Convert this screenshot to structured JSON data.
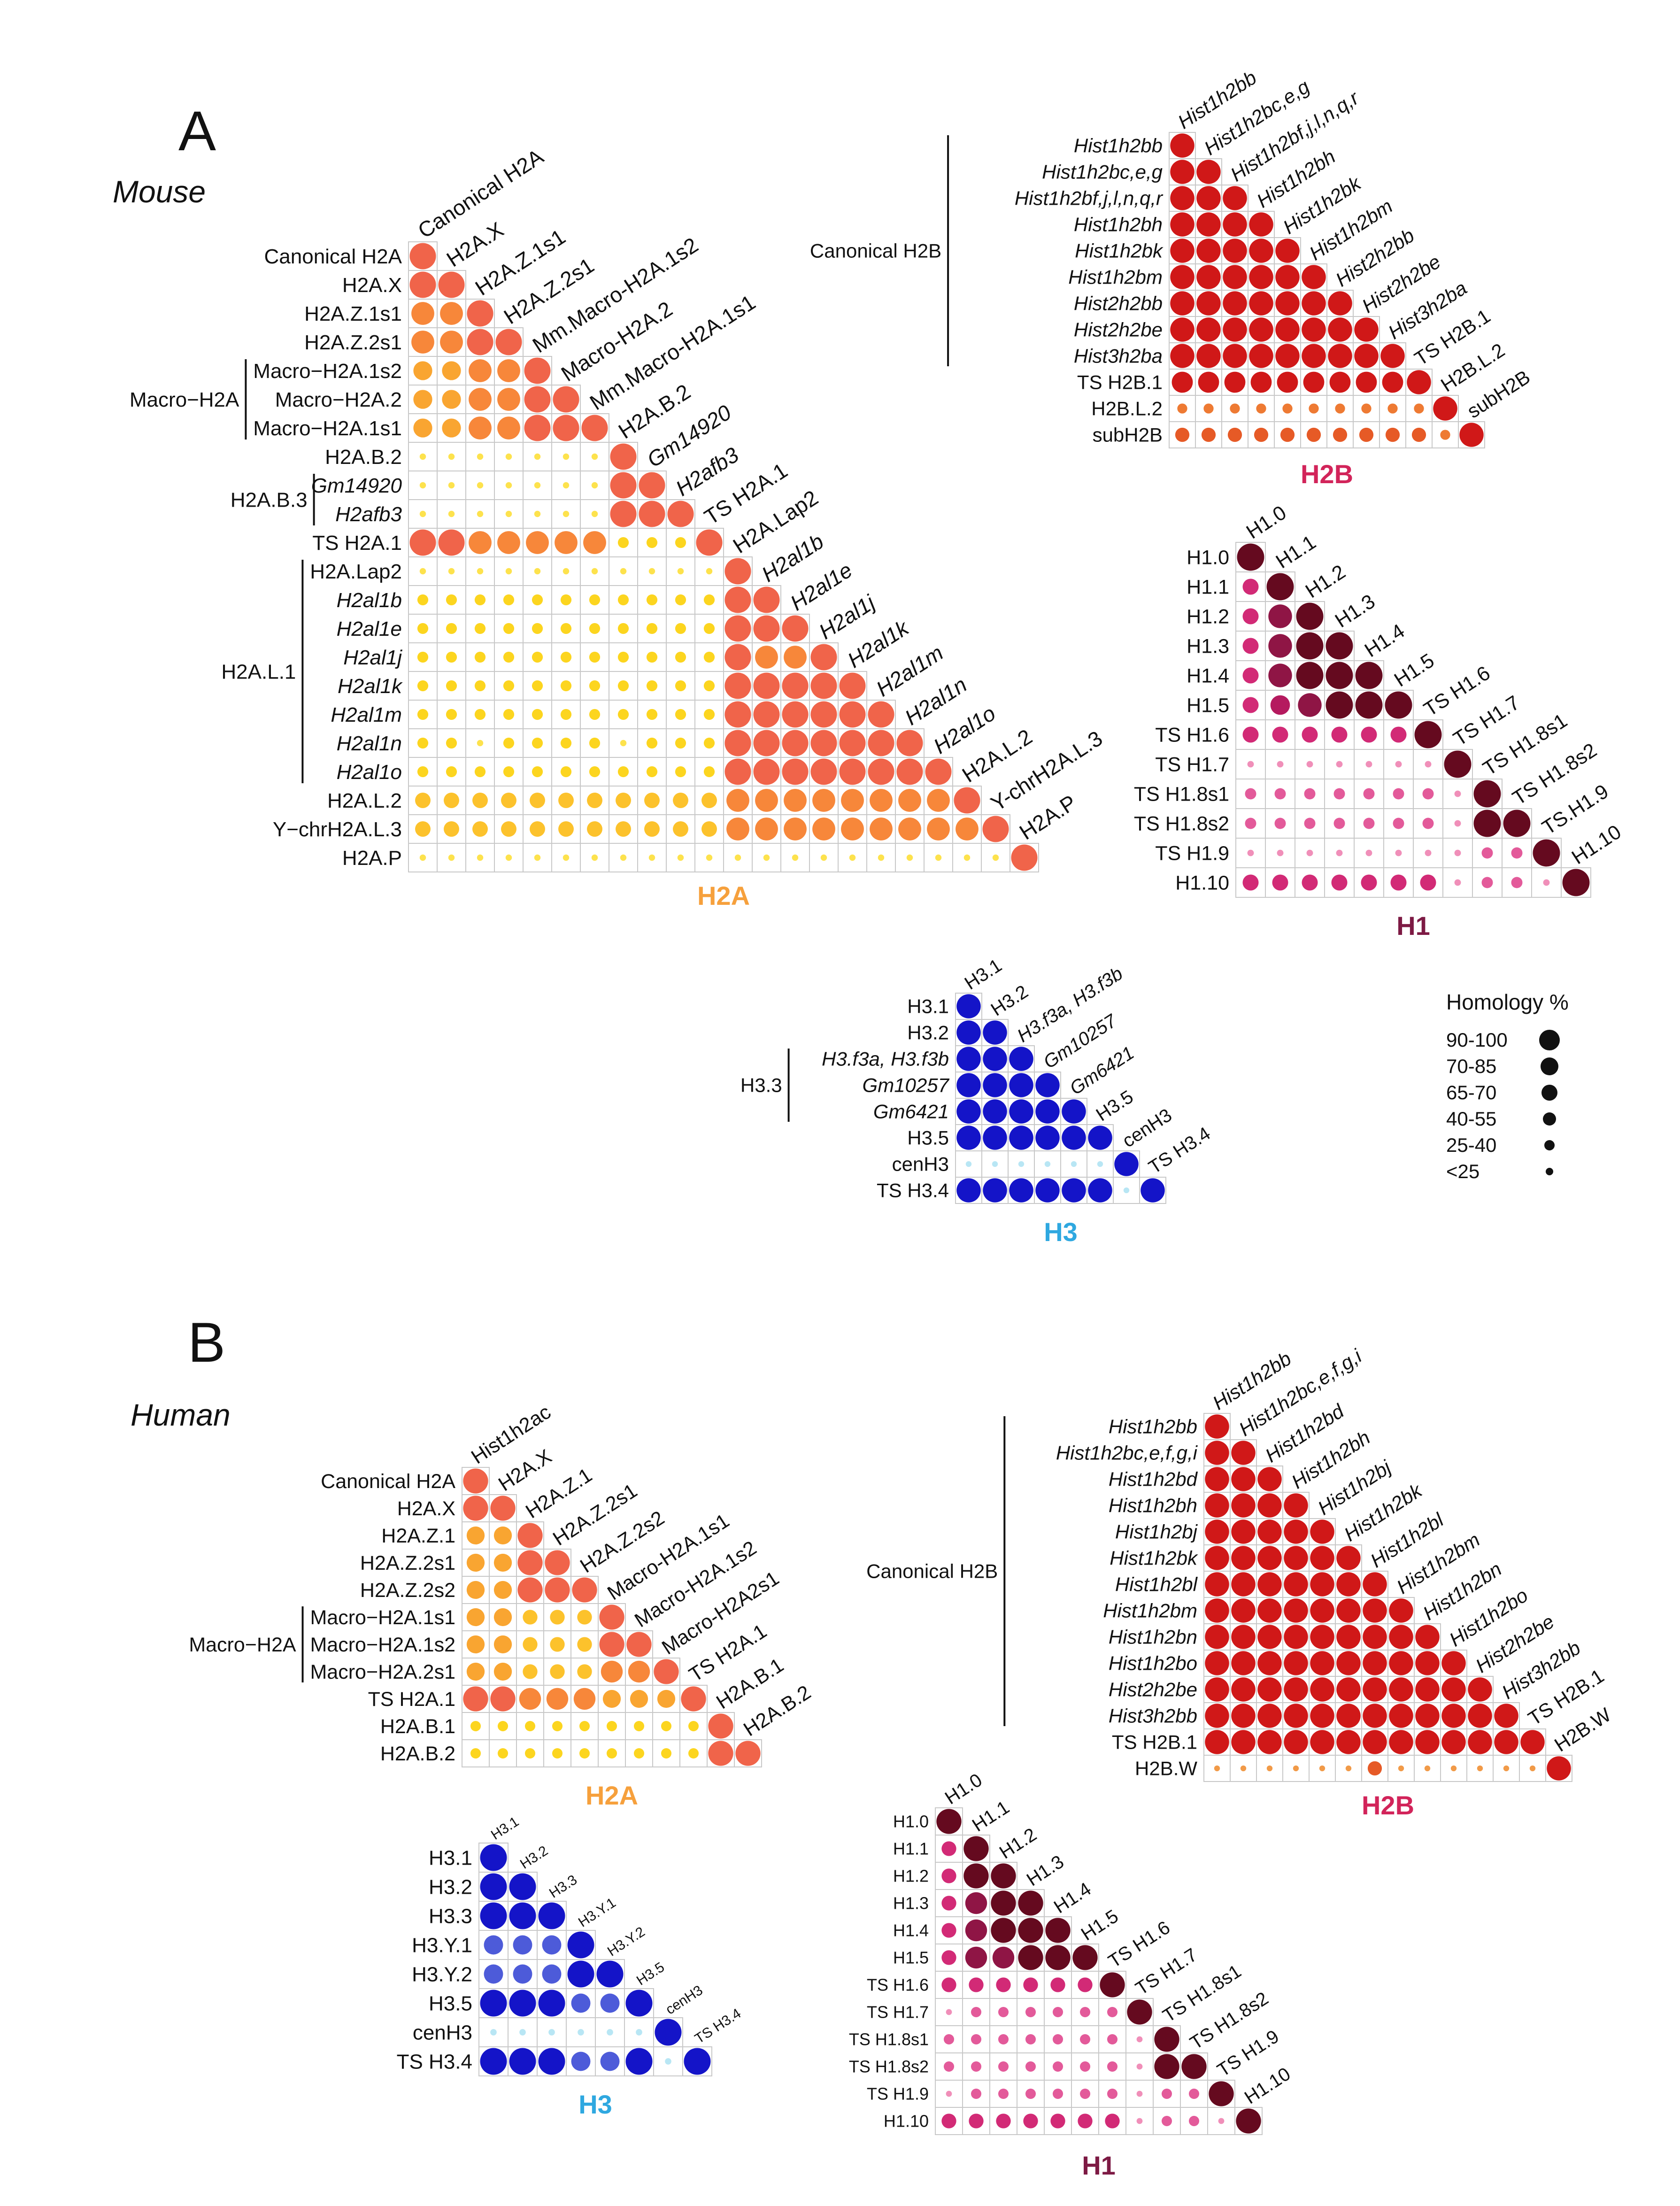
{
  "figure": {
    "panels": [
      {
        "letter": "A",
        "species": "Mouse"
      },
      {
        "letter": "B",
        "species": "Human"
      }
    ],
    "legend": {
      "title": "Homology %",
      "items": [
        "90-100",
        "70-85",
        "65-70",
        "40-55",
        "25-40",
        "<25"
      ]
    }
  },
  "colors": {
    "H2A": {
      "title": "#F6A03C",
      "bins": [
        "#F0644A",
        "#F7873A",
        "#F9A531",
        "#FCC22C",
        "#FCD51F",
        "#FDE24D"
      ]
    },
    "H2B": {
      "title": "#D2245A",
      "bins": [
        "#D01818",
        "#D01818",
        "#E1371A",
        "#E65A26",
        "#EE7A33",
        "#F19A48"
      ]
    },
    "H1": {
      "title": "#7D1A44",
      "bins": [
        "#650A1F",
        "#8F1545",
        "#B51A5F",
        "#D22A76",
        "#E35A9A",
        "#F08FB9"
      ]
    },
    "H3": {
      "title": "#2FA8E0",
      "bins": [
        "#1414C8",
        "#2B2BD0",
        "#4D5BD9",
        "#6B7BE0",
        "#9ABBEF",
        "#B8E6F4"
      ]
    }
  },
  "chart_data": [
    {
      "type": "heatmap",
      "id": "mouse-h2a",
      "title": "H2A",
      "panel": "A",
      "labels": [
        "Canonical H2A",
        "H2A.X",
        "H2A.Z.1s1",
        "H2A.Z.2s1",
        "Macro−H2A.1s2",
        "Macro−H2A.2",
        "Macro−H2A.1s1",
        "H2A.B.2",
        "Gm14920",
        "H2afb3",
        "TS H2A.1",
        "H2A.Lap2",
        "H2al1b",
        "H2al1e",
        "H2al1j",
        "H2al1k",
        "H2al1m",
        "H2al1n",
        "H2al1o",
        "H2A.L.2",
        "Y−chrH2A.L.3",
        "H2A.P"
      ],
      "top_labels": [
        "Canonical H2A",
        "H2A.X",
        "H2A.Z.1s1",
        "H2A.Z.2s1",
        "Mm.Macro-H2A.1s2",
        "Macro-H2A.2",
        "Mm.Macro-H2A.1s1",
        "H2A.B.2",
        "Gm14920",
        "H2afb3",
        "TS H2A.1",
        "H2A.Lap2",
        "H2al1b",
        "H2al1e",
        "H2al1j",
        "H2al1k",
        "H2al1m",
        "H2al1n",
        "H2al1o",
        "H2A.L.2",
        "Y-chrH2A.L.3",
        "H2A.P"
      ],
      "italic": [
        "Gm14920",
        "H2afb3",
        "H2al1b",
        "H2al1e",
        "H2al1j",
        "H2al1k",
        "H2al1m",
        "H2al1n",
        "H2al1o"
      ],
      "groups": [
        {
          "label": "Macro−H2A",
          "from": 4,
          "to": 6
        },
        {
          "label": "H2A.B.3",
          "from": 8,
          "to": 9
        },
        {
          "label": "H2A.L.1",
          "from": 11,
          "to": 18
        }
      ],
      "bins_legend": [
        "90-100",
        "70-85",
        "65-70",
        "40-55",
        "25-40",
        "<25"
      ],
      "bins": [
        [
          0
        ],
        [
          0,
          0
        ],
        [
          1,
          1,
          0
        ],
        [
          1,
          1,
          0,
          0
        ],
        [
          2,
          2,
          1,
          1,
          0
        ],
        [
          2,
          2,
          1,
          1,
          0,
          0
        ],
        [
          2,
          2,
          1,
          1,
          0,
          0,
          0
        ],
        [
          5,
          5,
          5,
          5,
          5,
          5,
          5,
          0
        ],
        [
          5,
          5,
          5,
          5,
          5,
          5,
          5,
          0,
          0
        ],
        [
          5,
          5,
          5,
          5,
          5,
          5,
          5,
          0,
          0,
          0
        ],
        [
          0,
          0,
          1,
          1,
          1,
          1,
          1,
          4,
          4,
          4,
          0
        ],
        [
          5,
          5,
          5,
          5,
          5,
          5,
          5,
          5,
          5,
          5,
          5,
          0
        ],
        [
          4,
          4,
          4,
          4,
          4,
          4,
          4,
          4,
          4,
          4,
          4,
          0,
          0
        ],
        [
          4,
          4,
          4,
          4,
          4,
          4,
          4,
          4,
          4,
          4,
          4,
          0,
          0,
          0
        ],
        [
          4,
          4,
          4,
          4,
          4,
          4,
          4,
          4,
          4,
          4,
          4,
          0,
          1,
          1,
          0
        ],
        [
          4,
          4,
          4,
          4,
          4,
          4,
          4,
          4,
          4,
          4,
          4,
          0,
          0,
          0,
          0,
          0
        ],
        [
          4,
          4,
          4,
          4,
          4,
          4,
          4,
          4,
          4,
          4,
          4,
          0,
          0,
          0,
          0,
          0,
          0
        ],
        [
          4,
          4,
          5,
          4,
          4,
          4,
          4,
          5,
          4,
          4,
          4,
          0,
          0,
          0,
          0,
          0,
          0,
          0
        ],
        [
          4,
          4,
          4,
          4,
          4,
          4,
          4,
          4,
          4,
          4,
          4,
          0,
          0,
          0,
          0,
          0,
          0,
          0,
          0
        ],
        [
          3,
          3,
          3,
          3,
          3,
          3,
          3,
          3,
          3,
          3,
          3,
          1,
          1,
          1,
          1,
          1,
          1,
          1,
          1,
          0
        ],
        [
          3,
          3,
          3,
          3,
          3,
          3,
          3,
          3,
          3,
          3,
          3,
          1,
          1,
          1,
          1,
          1,
          1,
          1,
          1,
          1,
          0
        ],
        [
          5,
          5,
          5,
          5,
          5,
          5,
          5,
          5,
          5,
          5,
          5,
          5,
          5,
          5,
          5,
          5,
          5,
          5,
          5,
          5,
          5,
          0
        ]
      ]
    },
    {
      "type": "heatmap",
      "id": "mouse-h2b",
      "title": "H2B",
      "panel": "A",
      "labels": [
        "Hist1h2bb",
        "Hist1h2bc,e,g",
        "Hist1h2bf,j,l,n,q,r",
        "Hist1h2bh",
        "Hist1h2bk",
        "Hist1h2bm",
        "Hist2h2bb",
        "Hist2h2be",
        "Hist3h2ba",
        "TS H2B.1",
        "H2B.L.2",
        "subH2B"
      ],
      "top_labels": [
        "Hist1h2bb",
        "Hist1h2bc,e,g",
        "Hist1h2bf,j,l,n,q,r",
        "Hist1h2bh",
        "Hist1h2bk",
        "Hist1h2bm",
        "Hist2h2bb",
        "Hist2h2be",
        "Hist3h2ba",
        "TS H2B.1",
        "H2B.L.2",
        "subH2B"
      ],
      "italic": [
        "Hist1h2bb",
        "Hist1h2bc,e,g",
        "Hist1h2bf,j,l,n,q,r",
        "Hist1h2bh",
        "Hist1h2bk",
        "Hist1h2bm",
        "Hist2h2bb",
        "Hist2h2be",
        "Hist3h2ba"
      ],
      "groups": [
        {
          "label": "Canonical H2B",
          "from": 0,
          "to": 8
        }
      ],
      "bins": [
        [
          0
        ],
        [
          0,
          0
        ],
        [
          0,
          0,
          0
        ],
        [
          0,
          0,
          0,
          0
        ],
        [
          0,
          0,
          0,
          0,
          0
        ],
        [
          0,
          0,
          0,
          0,
          0,
          0
        ],
        [
          0,
          0,
          0,
          0,
          0,
          0,
          0
        ],
        [
          0,
          0,
          0,
          0,
          0,
          0,
          0,
          0
        ],
        [
          0,
          0,
          0,
          0,
          0,
          0,
          0,
          0,
          0
        ],
        [
          1,
          1,
          1,
          1,
          1,
          1,
          1,
          1,
          1,
          0
        ],
        [
          4,
          4,
          4,
          4,
          4,
          4,
          4,
          4,
          4,
          4,
          0
        ],
        [
          3,
          3,
          3,
          3,
          3,
          3,
          3,
          3,
          3,
          3,
          4,
          0
        ]
      ]
    },
    {
      "type": "heatmap",
      "id": "mouse-h1",
      "title": "H1",
      "panel": "A",
      "labels": [
        "H1.0",
        "H1.1",
        "H1.2",
        "H1.3",
        "H1.4",
        "H1.5",
        "TS H1.6",
        "TS H1.7",
        "TS H1.8s1",
        "TS H1.8s2",
        "TS H1.9",
        "H1.10"
      ],
      "top_labels": [
        "H1.0",
        "H1.1",
        "H1.2",
        "H1.3",
        "H1.4",
        "H1.5",
        "TS H1.6",
        "TS H1.7",
        "TS H1.8s1",
        "TS H1.8s2",
        "TS.H1.9",
        "H1.10"
      ],
      "italic": [],
      "groups": [],
      "bins": [
        [
          0
        ],
        [
          3,
          0
        ],
        [
          3,
          1,
          0
        ],
        [
          3,
          1,
          0,
          0
        ],
        [
          3,
          1,
          0,
          0,
          0
        ],
        [
          3,
          2,
          1,
          0,
          0,
          0
        ],
        [
          3,
          3,
          3,
          3,
          3,
          3,
          0
        ],
        [
          5,
          5,
          5,
          5,
          5,
          5,
          5,
          0
        ],
        [
          4,
          4,
          4,
          4,
          4,
          4,
          4,
          5,
          0
        ],
        [
          4,
          4,
          4,
          4,
          4,
          4,
          4,
          5,
          0,
          0
        ],
        [
          5,
          5,
          5,
          5,
          5,
          5,
          5,
          5,
          4,
          4,
          0
        ],
        [
          3,
          3,
          3,
          3,
          3,
          3,
          3,
          5,
          4,
          4,
          5,
          0
        ]
      ]
    },
    {
      "type": "heatmap",
      "id": "mouse-h3",
      "title": "H3",
      "panel": "A",
      "labels": [
        "H3.1",
        "H3.2",
        "H3.f3a, H3.f3b",
        "Gm10257",
        "Gm6421",
        "H3.5",
        "cenH3",
        "TS H3.4"
      ],
      "top_labels": [
        "H3.1",
        "H3.2",
        "H3.f3a, H3.f3b",
        "Gm10257",
        "Gm6421",
        "H3.5",
        "cenH3",
        "TS H3.4"
      ],
      "italic": [
        "H3.f3a, H3.f3b",
        "Gm10257",
        "Gm6421"
      ],
      "groups": [
        {
          "label": "H3.3",
          "from": 2,
          "to": 4
        }
      ],
      "bins": [
        [
          0
        ],
        [
          0,
          0
        ],
        [
          0,
          0,
          0
        ],
        [
          0,
          0,
          0,
          0
        ],
        [
          0,
          0,
          0,
          0,
          0
        ],
        [
          0,
          0,
          0,
          0,
          0,
          0
        ],
        [
          5,
          5,
          5,
          5,
          5,
          5,
          0
        ],
        [
          0,
          0,
          0,
          0,
          0,
          0,
          5,
          0
        ]
      ]
    },
    {
      "type": "heatmap",
      "id": "human-h2a",
      "title": "H2A",
      "panel": "B",
      "labels": [
        "Canonical H2A",
        "H2A.X",
        "H2A.Z.1",
        "H2A.Z.2s1",
        "H2A.Z.2s2",
        "Macro−H2A.1s1",
        "Macro−H2A.1s2",
        "Macro−H2A.2s1",
        "TS H2A.1",
        "H2A.B.1",
        "H2A.B.2"
      ],
      "top_labels": [
        "Hist1h2ac",
        "H2A.X",
        "H2A.Z.1",
        "H2A.Z.2s1",
        "H2A.Z.2s2",
        "Macro-H2A.1s1",
        "Macro-H2A.1s2",
        "Macro-H2A2s1",
        "TS H2A.1",
        "H2A.B.1",
        "H2A.B.2"
      ],
      "italic": [],
      "groups": [
        {
          "label": "Macro−H2A",
          "from": 5,
          "to": 7
        }
      ],
      "bins": [
        [
          0
        ],
        [
          0,
          0
        ],
        [
          2,
          2,
          0
        ],
        [
          2,
          2,
          0,
          0
        ],
        [
          2,
          2,
          0,
          0,
          0
        ],
        [
          2,
          2,
          3,
          3,
          3,
          0
        ],
        [
          2,
          2,
          3,
          3,
          3,
          0,
          0
        ],
        [
          2,
          2,
          3,
          3,
          3,
          1,
          1,
          0
        ],
        [
          0,
          0,
          1,
          1,
          1,
          2,
          2,
          2,
          0
        ],
        [
          4,
          4,
          4,
          4,
          4,
          4,
          4,
          4,
          4,
          0
        ],
        [
          4,
          4,
          4,
          4,
          4,
          4,
          4,
          4,
          4,
          0,
          0
        ]
      ]
    },
    {
      "type": "heatmap",
      "id": "human-h2b",
      "title": "H2B",
      "panel": "B",
      "labels": [
        "Hist1h2bb",
        "Hist1h2bc,e,f,g,i",
        "Hist1h2bd",
        "Hist1h2bh",
        "Hist1h2bj",
        "Hist1h2bk",
        "Hist1h2bl",
        "Hist1h2bm",
        "Hist1h2bn",
        "Hist1h2bo",
        "Hist2h2be",
        "Hist3h2bb",
        "TS H2B.1",
        "H2B.W"
      ],
      "top_labels": [
        "Hist1h2bb",
        "Hist1h2bc,e,f,g,i",
        "Hist1h2bd",
        "Hist1h2bh",
        "Hist1h2bj",
        "Hist1h2bk",
        "Hist1h2bl",
        "Hist1h2bm",
        "Hist1h2bn",
        "Hist1h2bo",
        "Hist2h2be",
        "Hist3h2bb",
        "TS H2B.1",
        "H2B.W"
      ],
      "italic": [
        "Hist1h2bb",
        "Hist1h2bc,e,f,g,i",
        "Hist1h2bd",
        "Hist1h2bh",
        "Hist1h2bj",
        "Hist1h2bk",
        "Hist1h2bl",
        "Hist1h2bm",
        "Hist1h2bn",
        "Hist1h2bo",
        "Hist2h2be",
        "Hist3h2bb"
      ],
      "groups": [
        {
          "label": "Canonical H2B",
          "from": 0,
          "to": 11
        }
      ],
      "bins": [
        [
          0
        ],
        [
          0,
          0
        ],
        [
          0,
          0,
          0
        ],
        [
          0,
          0,
          0,
          0
        ],
        [
          0,
          0,
          0,
          0,
          0
        ],
        [
          0,
          0,
          0,
          0,
          0,
          0
        ],
        [
          0,
          0,
          0,
          0,
          0,
          0,
          0
        ],
        [
          0,
          0,
          0,
          0,
          0,
          0,
          0,
          0
        ],
        [
          0,
          0,
          0,
          0,
          0,
          0,
          0,
          0,
          0
        ],
        [
          0,
          0,
          0,
          0,
          0,
          0,
          0,
          0,
          0,
          0
        ],
        [
          0,
          0,
          0,
          0,
          0,
          0,
          0,
          0,
          0,
          0,
          0
        ],
        [
          0,
          0,
          0,
          0,
          0,
          0,
          0,
          0,
          0,
          0,
          0,
          0
        ],
        [
          0,
          0,
          0,
          0,
          0,
          0,
          0,
          0,
          0,
          0,
          0,
          0,
          0
        ],
        [
          5,
          5,
          5,
          5,
          5,
          5,
          3,
          5,
          5,
          5,
          5,
          5,
          5,
          0
        ]
      ]
    },
    {
      "type": "heatmap",
      "id": "human-h1",
      "title": "H1",
      "panel": "B",
      "labels": [
        "H1.0",
        "H1.1",
        "H1.2",
        "H1.3",
        "H1.4",
        "H1.5",
        "TS H1.6",
        "TS H1.7",
        "TS H1.8s1",
        "TS H1.8s2",
        "TS  H1.9",
        "H1.10"
      ],
      "top_labels": [
        "H1.0",
        "H1.1",
        "H1.2",
        "H1.3",
        "H1.4",
        "H1.5",
        "TS H1.6",
        "TS H1.7",
        "TS H1.8s1",
        "TS H1.8s2",
        "TS H1.9",
        "H1.10"
      ],
      "italic": [],
      "groups": [],
      "bins": [
        [
          0
        ],
        [
          3,
          0
        ],
        [
          3,
          0,
          0
        ],
        [
          3,
          1,
          0,
          0
        ],
        [
          3,
          1,
          0,
          0,
          0
        ],
        [
          3,
          1,
          1,
          0,
          0,
          0
        ],
        [
          3,
          3,
          3,
          3,
          3,
          3,
          0
        ],
        [
          5,
          4,
          4,
          4,
          4,
          4,
          4,
          0
        ],
        [
          4,
          4,
          4,
          4,
          4,
          4,
          4,
          5,
          0
        ],
        [
          4,
          4,
          4,
          4,
          4,
          4,
          4,
          5,
          0,
          0
        ],
        [
          5,
          4,
          4,
          4,
          4,
          4,
          4,
          5,
          4,
          4,
          0
        ],
        [
          3,
          3,
          3,
          3,
          3,
          3,
          3,
          5,
          4,
          4,
          5,
          0
        ]
      ]
    },
    {
      "type": "heatmap",
      "id": "human-h3",
      "title": "H3",
      "panel": "B",
      "labels": [
        "H3.1",
        "H3.2",
        "H3.3",
        "H3.Y.1",
        "H3.Y.2",
        "H3.5",
        "cenH3",
        "TS H3.4"
      ],
      "top_labels": [
        "H3.1",
        "H3.2",
        "H3.3",
        "H3.Y.1",
        "H3.Y.2",
        "H3.5",
        "cenH3",
        "TS H3.4"
      ],
      "italic": [],
      "groups": [],
      "bins": [
        [
          0
        ],
        [
          0,
          0
        ],
        [
          0,
          0,
          0
        ],
        [
          2,
          2,
          2,
          0
        ],
        [
          2,
          2,
          2,
          0,
          0
        ],
        [
          0,
          0,
          0,
          2,
          2,
          0
        ],
        [
          5,
          5,
          5,
          5,
          5,
          5,
          0
        ],
        [
          0,
          0,
          0,
          2,
          2,
          0,
          5,
          0
        ]
      ]
    }
  ]
}
